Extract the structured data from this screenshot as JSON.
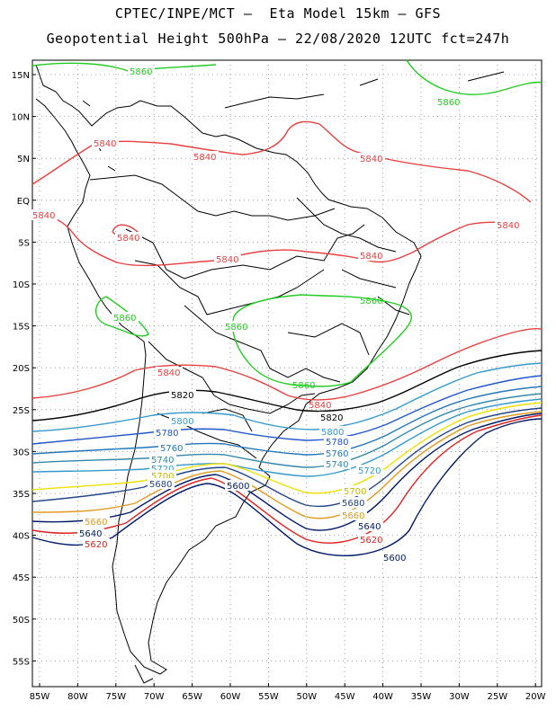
{
  "header": {
    "line1": "CPTEC/INPE/MCT –  Eta Model 15km – GFS",
    "line2": "Geopotential Height 500hPa – 22/08/2020 12UTC fct=247h"
  },
  "axes": {
    "lat_labels": [
      "15N",
      "10N",
      "5N",
      "EQ",
      "5S",
      "10S",
      "15S",
      "20S",
      "25S",
      "30S",
      "35S",
      "40S",
      "45S",
      "50S",
      "55S"
    ],
    "lon_labels": [
      "85W",
      "80W",
      "75W",
      "70W",
      "65W",
      "60W",
      "55W",
      "50W",
      "45W",
      "40W",
      "35W",
      "30W",
      "25W",
      "20W"
    ]
  },
  "contours": [
    {
      "value": "5860",
      "color": "#22cc22"
    },
    {
      "value": "5840",
      "color": "#e84040"
    },
    {
      "value": "5820",
      "color": "#000000"
    },
    {
      "value": "5800",
      "color": "#3399cc"
    },
    {
      "value": "5780",
      "color": "#2255cc"
    },
    {
      "value": "5760",
      "color": "#2277bb"
    },
    {
      "value": "5740",
      "color": "#3388aa"
    },
    {
      "value": "5720",
      "color": "#3399cc"
    },
    {
      "value": "5700",
      "color": "#f0e000"
    },
    {
      "value": "5680",
      "color": "#224488"
    },
    {
      "value": "5660",
      "color": "#e09a20"
    },
    {
      "value": "5640",
      "color": "#001a66"
    },
    {
      "value": "5620",
      "color": "#e02020"
    },
    {
      "value": "5600",
      "color": "#001a66"
    }
  ],
  "labels": {
    "a": "5860",
    "b": "5860",
    "c": "5860",
    "d": "5860",
    "e": "5840",
    "f": "5840",
    "g": "5840",
    "h": "5840",
    "i": "5840",
    "j": "5840",
    "k": "5840",
    "l": "5840",
    "m": "5840",
    "n": "5820",
    "o": "5820",
    "p": "5800",
    "q": "5800",
    "r": "5780",
    "s": "5780",
    "t": "5760",
    "u": "5760",
    "v": "5740",
    "w": "5740",
    "x": "5720",
    "y": "5720",
    "z": "5700",
    "aa": "5700",
    "ab": "5680",
    "ac": "5680",
    "ad": "5660",
    "ae": "5660",
    "af": "5640",
    "ag": "5640",
    "ah": "5620",
    "ai": "5620",
    "aj": "5600",
    "ak": "5600"
  }
}
